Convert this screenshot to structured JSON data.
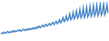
{
  "chart_data": {
    "type": "line",
    "color": "#3a7fc4",
    "grid": false,
    "tick_labels": false,
    "ylim": [
      0,
      100
    ],
    "values": [
      14,
      17,
      15,
      19,
      16,
      18,
      21,
      17,
      20,
      18,
      22,
      19,
      23,
      20,
      21,
      24,
      22,
      25,
      21,
      24,
      27,
      23,
      26,
      24,
      28,
      25,
      29,
      26,
      30,
      27,
      31,
      28,
      33,
      30,
      35,
      31,
      34,
      38,
      33,
      36,
      40,
      35,
      38,
      42,
      37,
      41,
      45,
      39,
      43,
      48,
      41,
      46,
      52,
      44,
      49,
      58,
      47,
      51,
      62,
      50,
      55,
      68,
      52,
      57,
      72,
      54,
      60,
      76,
      56,
      62,
      80,
      57,
      64,
      84,
      58,
      66,
      86,
      60,
      67,
      88,
      61,
      69,
      90,
      62,
      70,
      92,
      63,
      71,
      94,
      64,
      72,
      95,
      65,
      73,
      93,
      70
    ]
  }
}
